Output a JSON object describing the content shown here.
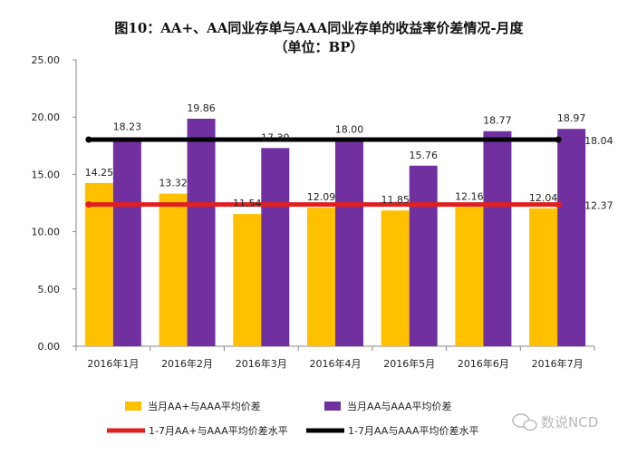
{
  "chart_data": {
    "type": "bar",
    "title": "图10：AA+、AA同业存单与AAA同业存单的收益率价差情况-月度",
    "subtitle": "（单位：BP）",
    "categories": [
      "2016年1月",
      "2016年2月",
      "2016年3月",
      "2016年4月",
      "2016年5月",
      "2016年6月",
      "2016年7月"
    ],
    "series": [
      {
        "name": "当月AA+与AAA平均价差",
        "values": [
          14.25,
          13.32,
          11.54,
          12.09,
          11.85,
          12.16,
          12.04
        ],
        "color": "#FFC000",
        "kind": "bar"
      },
      {
        "name": "当月AA与AAA平均价差",
        "values": [
          18.23,
          19.86,
          17.3,
          18.0,
          15.76,
          18.77,
          18.97
        ],
        "color": "#7030A0",
        "kind": "bar"
      },
      {
        "name": "1-7月AA+与AAA平均价差水平",
        "value": 12.37,
        "color": "#E02020",
        "kind": "hline"
      },
      {
        "name": "1-7月AA与AAA平均价差水平",
        "value": 18.04,
        "color": "#000000",
        "kind": "hline"
      }
    ],
    "yticks": [
      "0.00",
      "5.00",
      "10.00",
      "15.00",
      "20.00",
      "25.00"
    ],
    "ylim": [
      0,
      25
    ],
    "legend_position": "bottom",
    "grid": false
  },
  "watermark": "数说NCD"
}
